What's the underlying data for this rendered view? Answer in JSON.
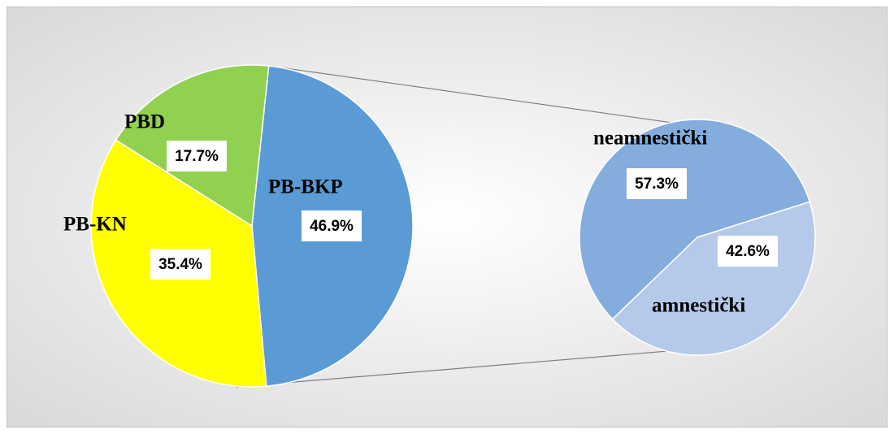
{
  "chart_data": [
    {
      "type": "pie",
      "categories": [
        "PB-BKP",
        "PB-KN",
        "PBD"
      ],
      "values": [
        46.9,
        35.4,
        17.7
      ],
      "value_labels": [
        "46.9%",
        "35.4%",
        "17.7%"
      ],
      "colors": [
        "#5b9bd5",
        "#ffff00",
        "#92d050"
      ]
    },
    {
      "type": "pie",
      "categories": [
        "neamnestički",
        "amnestički"
      ],
      "values": [
        57.3,
        42.6
      ],
      "value_labels": [
        "57.3%",
        "42.6%"
      ],
      "colors": [
        "#84acdd",
        "#b5caea"
      ]
    }
  ]
}
